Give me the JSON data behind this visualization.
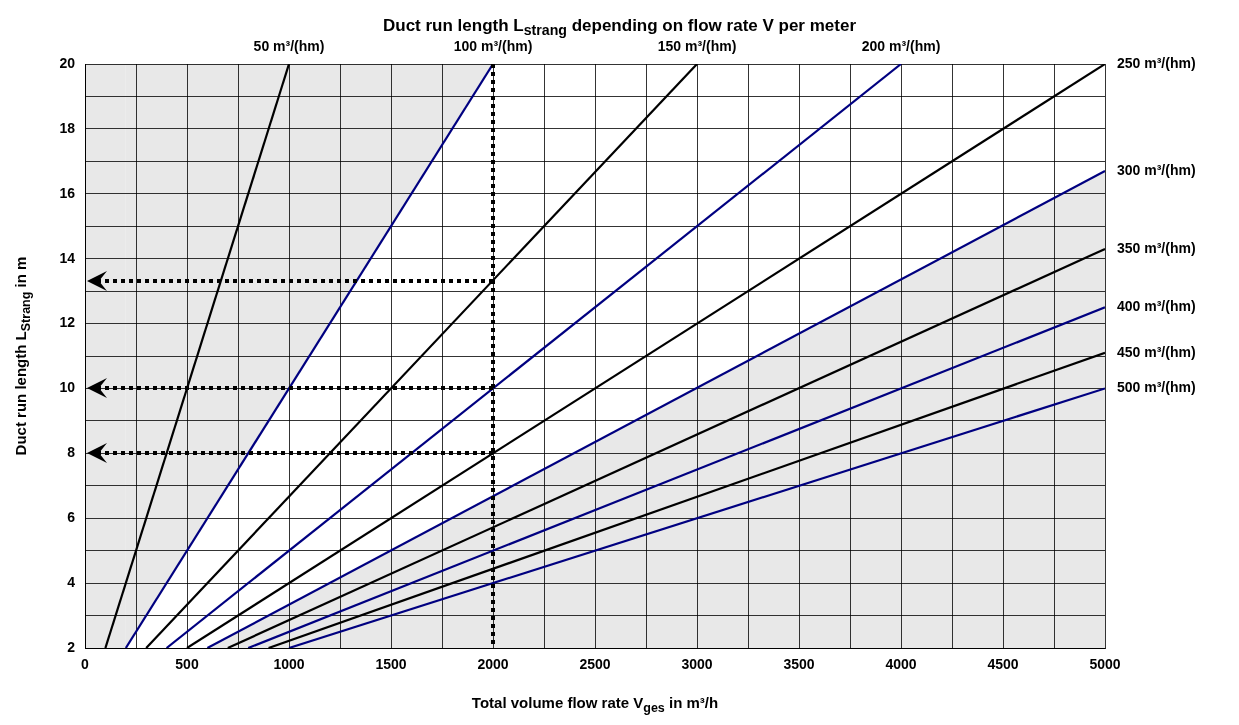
{
  "chart_data": {
    "type": "line",
    "title": "Duct run length L$_{strang}$ depending on flow rate V per meter",
    "xlabel": "Total volume flow rate V$_{ges}$ in m³/h",
    "ylabel": "Duct run length L$_{Strang}$ in m",
    "xlim": [
      0,
      5000
    ],
    "ylim": [
      2,
      20
    ],
    "xticks": [
      0,
      {
        "value": 250,
        "label": null
      },
      500,
      {
        "value": 750,
        "label": null
      },
      1000,
      {
        "value": 1250,
        "label": null
      },
      1500,
      {
        "value": 1750,
        "label": null
      },
      2000,
      {
        "value": 2250,
        "label": null
      },
      2500,
      {
        "value": 2750,
        "label": null
      },
      3000,
      {
        "value": 3250,
        "label": null
      },
      3500,
      {
        "value": 3750,
        "label": null
      },
      4000,
      {
        "value": 4250,
        "label": null
      },
      4500,
      {
        "value": 4750,
        "label": null
      },
      5000
    ],
    "yticks": [
      2,
      {
        "value": 3,
        "label": null
      },
      4,
      {
        "value": 5,
        "label": null
      },
      6,
      {
        "value": 7,
        "label": null
      },
      8,
      {
        "value": 9,
        "label": null
      },
      10,
      {
        "value": 11,
        "label": null
      },
      12,
      {
        "value": 13,
        "label": null
      },
      14,
      {
        "value": 15,
        "label": null
      },
      16,
      {
        "value": 17,
        "label": null
      },
      18,
      {
        "value": 19,
        "label": null
      },
      20
    ],
    "grid": true,
    "marker": "none",
    "line_style": "solid",
    "bands": [
      {
        "axis": "x",
        "from": 0,
        "to": 200,
        "color": "#e8e8e8"
      }
    ],
    "ref_lines": [
      {
        "axis": "x",
        "value": 2000,
        "color": "#000000",
        "line_style": "dotted"
      },
      {
        "axis": "y",
        "value": 13.3,
        "color": "#000000",
        "line_style": "dotted"
      },
      {
        "axis": "y",
        "value": 10,
        "color": "#000000",
        "line_style": "dotted"
      },
      {
        "axis": "y",
        "value": 8,
        "color": "#000000",
        "line_style": "dotted"
      }
    ],
    "series": [
      {
        "name": "50 m³/(hm)",
        "color": "#000000",
        "x": [
          100,
          1000
        ],
        "values": [
          2,
          20
        ]
      },
      {
        "name": "100 m³/(hm)",
        "color": "#000080",
        "x": [
          200,
          2000
        ],
        "values": [
          2,
          20
        ],
        "lower": [
          2,
          20
        ],
        "upper": [
          20,
          20
        ]
      },
      {
        "name": "150 m³/(hm)",
        "color": "#000000",
        "x": [
          300,
          3000
        ],
        "values": [
          2,
          20
        ]
      },
      {
        "name": "200 m³/(hm)",
        "color": "#000080",
        "x": [
          400,
          4000
        ],
        "values": [
          2,
          20
        ]
      },
      {
        "name": "250 m³/(hm)",
        "color": "#000000",
        "x": [
          500,
          5000
        ],
        "values": [
          2,
          20
        ]
      },
      {
        "name": "300 m³/(hm)",
        "color": "#000080",
        "x": [
          600,
          5000
        ],
        "values": [
          2,
          16.7
        ],
        "lower": [
          2,
          2
        ],
        "upper": [
          2,
          16.7
        ]
      },
      {
        "name": "350 m³/(hm)",
        "color": "#000000",
        "x": [
          700,
          5000
        ],
        "values": [
          2,
          14.3
        ]
      },
      {
        "name": "400 m³/(hm)",
        "color": "#000080",
        "x": [
          800,
          5000
        ],
        "values": [
          2,
          12.5
        ]
      },
      {
        "name": "450 m³/(hm)",
        "color": "#000000",
        "x": [
          900,
          5000
        ],
        "values": [
          2,
          11.1
        ]
      },
      {
        "name": "500 m³/(hm)",
        "color": "#000080",
        "x": [
          1000,
          5000
        ],
        "values": [
          2,
          10
        ]
      }
    ]
  }
}
